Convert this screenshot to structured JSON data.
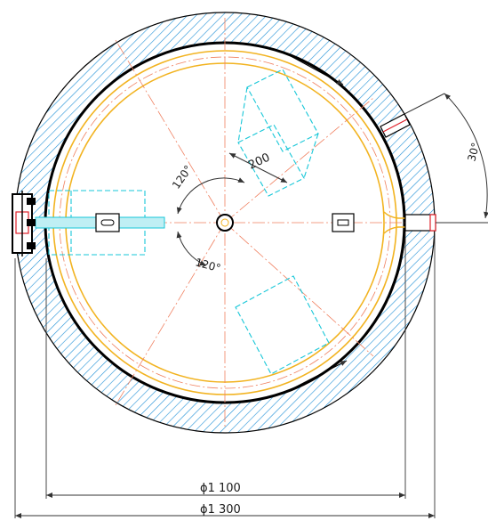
{
  "drawing": {
    "dimensions": {
      "inner_diameter": "ϕ1 100",
      "outer_diameter": "ϕ1 300",
      "cutout_width": "200"
    },
    "angles": {
      "upper": "120°",
      "lower": "120°",
      "outlet": "30°"
    }
  },
  "colors": {
    "outline": "#000000",
    "hatch": "#1e8fd6",
    "rails": "#f2b320",
    "centerline": "#f08060",
    "cyan": "#17c7d8",
    "red": "#e0202a",
    "dim": "#333333"
  }
}
